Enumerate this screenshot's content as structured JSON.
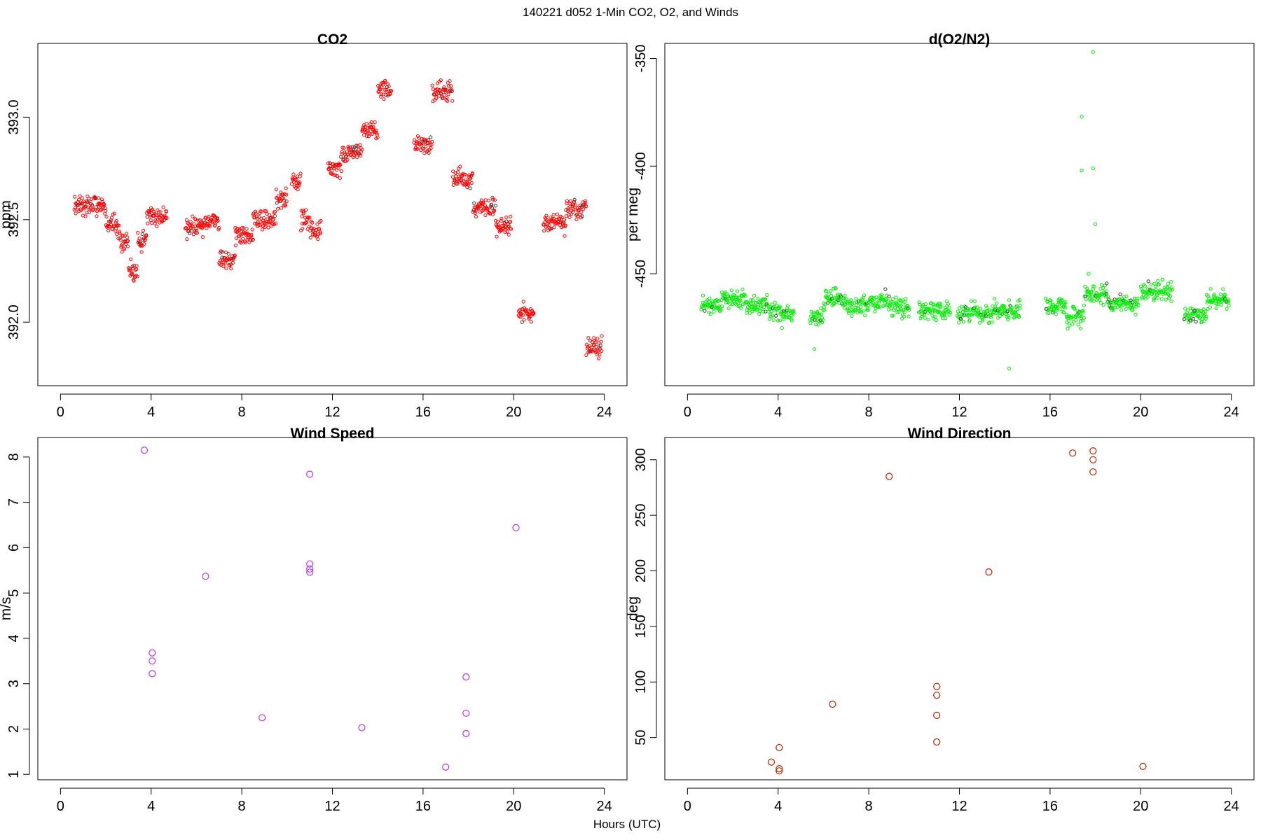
{
  "figure": {
    "title": "140221   d052   1-Min CO2, O2, and Winds",
    "xlabel": "Hours (UTC)"
  },
  "chart_data": [
    {
      "type": "scatter",
      "title": "CO2",
      "ylabel": "ppm",
      "xlabel": "",
      "xlim": [
        -1,
        25
      ],
      "ylim": [
        391.69,
        393.36
      ],
      "xticks": [
        0,
        4,
        8,
        12,
        16,
        20,
        24
      ],
      "yticks": [
        392.0,
        392.5,
        393.0
      ],
      "ytick_labels": [
        "392.0",
        "392.5",
        "393.0"
      ],
      "grid": false,
      "color": "#ff0000",
      "marker": "open-circle",
      "series": [
        {
          "segments": [
            {
              "start": 0.6,
              "end": 1.3,
              "mean": 392.57
            },
            {
              "start": 1.3,
              "end": 2.0,
              "mean": 392.57
            },
            {
              "start": 2.0,
              "end": 2.6,
              "mean": 392.47
            },
            {
              "start": 2.6,
              "end": 3.0,
              "mean": 392.4
            },
            {
              "start": 3.0,
              "end": 3.4,
              "mean": 392.25
            },
            {
              "start": 3.4,
              "end": 3.8,
              "mean": 392.4
            },
            {
              "start": 3.8,
              "end": 4.7,
              "mean": 392.52
            },
            {
              "start": 5.5,
              "end": 6.5,
              "mean": 392.47
            },
            {
              "start": 6.5,
              "end": 7.0,
              "mean": 392.5
            },
            {
              "start": 7.0,
              "end": 7.7,
              "mean": 392.3
            },
            {
              "start": 7.7,
              "end": 8.5,
              "mean": 392.42
            },
            {
              "start": 8.5,
              "end": 9.5,
              "mean": 392.5
            },
            {
              "start": 9.5,
              "end": 10.0,
              "mean": 392.6
            },
            {
              "start": 10.2,
              "end": 10.6,
              "mean": 392.68
            },
            {
              "start": 10.6,
              "end": 11.0,
              "mean": 392.5
            },
            {
              "start": 11.0,
              "end": 11.5,
              "mean": 392.45
            },
            {
              "start": 11.8,
              "end": 12.4,
              "mean": 392.75
            },
            {
              "start": 12.4,
              "end": 13.3,
              "mean": 392.83
            },
            {
              "start": 13.3,
              "end": 14.0,
              "mean": 392.93
            },
            {
              "start": 14.0,
              "end": 14.6,
              "mean": 393.13
            },
            {
              "start": 15.6,
              "end": 16.4,
              "mean": 392.87
            },
            {
              "start": 16.4,
              "end": 17.3,
              "mean": 393.12
            },
            {
              "start": 17.3,
              "end": 18.2,
              "mean": 392.7
            },
            {
              "start": 18.2,
              "end": 19.2,
              "mean": 392.56
            },
            {
              "start": 19.2,
              "end": 19.9,
              "mean": 392.47
            },
            {
              "start": 20.2,
              "end": 20.9,
              "mean": 392.05
            },
            {
              "start": 21.3,
              "end": 22.3,
              "mean": 392.48
            },
            {
              "start": 22.3,
              "end": 23.2,
              "mean": 392.55
            },
            {
              "start": 23.2,
              "end": 23.9,
              "mean": 391.88
            }
          ]
        }
      ]
    },
    {
      "type": "scatter",
      "title": "d(O2/N2)",
      "ylabel": "per meg",
      "xlabel": "",
      "xlim": [
        -1,
        25
      ],
      "ylim": [
        -502,
        -343
      ],
      "xticks": [
        0,
        4,
        8,
        12,
        16,
        20,
        24
      ],
      "yticks": [
        -450,
        -400,
        -350
      ],
      "ytick_labels": [
        "-450",
        "-400",
        "-350"
      ],
      "grid": false,
      "color": "#00ee00",
      "marker": "open-circle",
      "series": [
        {
          "segments": [
            {
              "start": 0.6,
              "end": 1.5,
              "mean": -465
            },
            {
              "start": 1.5,
              "end": 2.6,
              "mean": -462
            },
            {
              "start": 2.6,
              "end": 3.6,
              "mean": -465
            },
            {
              "start": 3.6,
              "end": 4.7,
              "mean": -468
            },
            {
              "start": 5.4,
              "end": 6.0,
              "mean": -470
            },
            {
              "start": 6.0,
              "end": 7.0,
              "mean": -462
            },
            {
              "start": 7.0,
              "end": 8.0,
              "mean": -465
            },
            {
              "start": 8.0,
              "end": 9.0,
              "mean": -463
            },
            {
              "start": 9.0,
              "end": 9.8,
              "mean": -466
            },
            {
              "start": 10.2,
              "end": 11.6,
              "mean": -467
            },
            {
              "start": 11.9,
              "end": 13.5,
              "mean": -469
            },
            {
              "start": 13.5,
              "end": 14.7,
              "mean": -467
            },
            {
              "start": 15.8,
              "end": 16.7,
              "mean": -465
            },
            {
              "start": 16.7,
              "end": 17.5,
              "mean": -470
            },
            {
              "start": 17.5,
              "end": 18.6,
              "mean": -460
            },
            {
              "start": 18.6,
              "end": 19.9,
              "mean": -464
            },
            {
              "start": 20.0,
              "end": 21.4,
              "mean": -458
            },
            {
              "start": 21.9,
              "end": 22.9,
              "mean": -469
            },
            {
              "start": 22.9,
              "end": 23.9,
              "mean": -462
            }
          ],
          "outliers": [
            {
              "x": 17.9,
              "y": -347
            },
            {
              "x": 17.4,
              "y": -377
            },
            {
              "x": 17.4,
              "y": -402
            },
            {
              "x": 17.9,
              "y": -401
            },
            {
              "x": 18.0,
              "y": -427
            },
            {
              "x": 17.7,
              "y": -450
            },
            {
              "x": 5.6,
              "y": -485
            },
            {
              "x": 14.2,
              "y": -494
            }
          ]
        }
      ]
    },
    {
      "type": "scatter",
      "title": "Wind Speed",
      "ylabel": "m/s",
      "xlabel": "",
      "xlim": [
        -1,
        25
      ],
      "ylim": [
        0.88,
        8.43
      ],
      "xticks": [
        0,
        4,
        8,
        12,
        16,
        20,
        24
      ],
      "yticks": [
        1,
        2,
        3,
        4,
        5,
        6,
        7,
        8
      ],
      "grid": false,
      "color": "#bb33ee",
      "marker": "open-circle",
      "series": [
        {
          "x": [
            3.7,
            4.05,
            4.05,
            4.05,
            6.4,
            8.9,
            11.0,
            11.0,
            11.0,
            11.0,
            13.3,
            17.0,
            17.9,
            17.9,
            17.9,
            20.1
          ],
          "y": [
            8.15,
            3.68,
            3.5,
            3.22,
            5.37,
            2.25,
            7.62,
            5.64,
            5.53,
            5.46,
            2.03,
            1.16,
            3.15,
            2.35,
            1.9,
            6.44
          ]
        }
      ]
    },
    {
      "type": "scatter",
      "title": "Wind Direction",
      "ylabel": "deg",
      "xlabel": "",
      "xlim": [
        -1,
        25
      ],
      "ylim": [
        12,
        320
      ],
      "xticks": [
        0,
        4,
        8,
        12,
        16,
        20,
        24
      ],
      "yticks": [
        50,
        100,
        150,
        200,
        250,
        300
      ],
      "grid": false,
      "color": "#bb2200",
      "marker": "open-circle",
      "series": [
        {
          "x": [
            3.7,
            4.05,
            4.05,
            4.05,
            6.4,
            8.9,
            11.0,
            11.0,
            11.0,
            11.0,
            13.3,
            17.0,
            17.9,
            17.9,
            17.9,
            20.1
          ],
          "y": [
            28,
            41,
            22,
            20,
            80,
            285,
            96,
            88,
            70,
            46,
            199,
            306,
            308,
            300,
            289,
            24
          ]
        }
      ]
    }
  ]
}
